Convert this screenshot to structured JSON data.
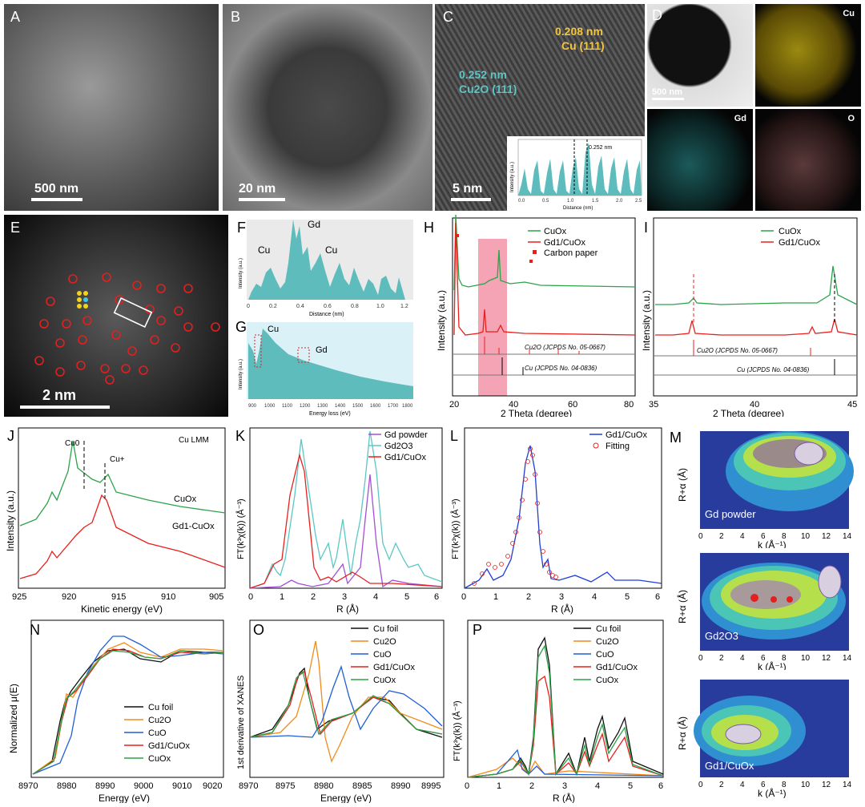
{
  "panels": {
    "A": {
      "label": "A",
      "scale": "500 nm"
    },
    "B": {
      "label": "B",
      "scale": "20 nm"
    },
    "C": {
      "label": "C",
      "scale": "5 nm",
      "ann1": "0.208 nm",
      "ann1b": "Cu (111)",
      "ann2": "0.252 nm",
      "ann2b": "Cu2O (111)",
      "inset_xlabel": "Distance (nm)",
      "inset_ylabel": "Intensity (a.u.)",
      "inset_ann": "0.252 nm",
      "inset_ticks": [
        "0.0",
        "0.5",
        "1.0",
        "1.5",
        "2.0",
        "2.5"
      ]
    },
    "D": {
      "label": "D",
      "scale": "500 nm",
      "maps": [
        "Cu",
        "Gd",
        "O"
      ]
    },
    "E": {
      "label": "E",
      "scale": "2 nm"
    },
    "F": {
      "label": "F",
      "xlabel": "Distance (nm)",
      "ylabel": "Intensity (a.u.)",
      "peaks": [
        "Cu",
        "Gd",
        "Cu"
      ],
      "ticks": [
        "0",
        "0.2",
        "0.4",
        "0.6",
        "0.8",
        "1.0",
        "1.2"
      ]
    },
    "G": {
      "label": "G",
      "xlabel": "Energy loss (eV)",
      "ylabel": "Intensity (a.u.)",
      "peaks": [
        "Cu",
        "Gd"
      ],
      "ticks": [
        "900",
        "1000",
        "1100",
        "1200",
        "1300",
        "1400",
        "1500",
        "1600",
        "1700",
        "1800"
      ]
    },
    "H": {
      "label": "H",
      "xlabel": "2 Theta (degree)",
      "ylabel": "Intensity (a.u.)",
      "legend": [
        "CuOx",
        "Gd1/CuOx",
        "Carbon paper"
      ],
      "refs": [
        "Cu2O (JCPDS No. 05-0667)",
        "Cu (JCPDS No. 04-0836)"
      ],
      "ticks": [
        "20",
        "40",
        "60",
        "80"
      ]
    },
    "I": {
      "label": "I",
      "xlabel": "2 Theta (degree)",
      "ylabel": "Intensity (a.u.)",
      "legend": [
        "CuOx",
        "Gd1/CuOx"
      ],
      "refs": [
        "Cu2O (JCPDS No. 05-0667)",
        "Cu (JCPDS No. 04-0836)"
      ],
      "ticks": [
        "35",
        "40",
        "45"
      ]
    },
    "J": {
      "label": "J",
      "xlabel": "Kinetic energy (eV)",
      "ylabel": "Intensity (a.u.)",
      "title": "Cu LMM",
      "marks": [
        "Cu0",
        "Cu+"
      ],
      "curves": [
        "CuOx",
        "Gd1-CuOx"
      ],
      "ticks": [
        "925",
        "920",
        "915",
        "910",
        "905"
      ]
    },
    "K": {
      "label": "K",
      "xlabel": "R (Å)",
      "ylabel": "FT(k³χ(k)) (Å⁻³)",
      "legend": [
        "Gd powder",
        "Gd2O3",
        "Gd1/CuOx"
      ],
      "ticks": [
        "0",
        "1",
        "2",
        "3",
        "4",
        "5",
        "6"
      ]
    },
    "L": {
      "label": "L",
      "xlabel": "R (Å)",
      "ylabel": "FT(k³χ(k)) (Å⁻³)",
      "legend": [
        "Gd1/CuOx",
        "Fitting"
      ],
      "ticks": [
        "0",
        "1",
        "2",
        "3",
        "4",
        "5",
        "6"
      ]
    },
    "M": {
      "label": "M",
      "xlabel": "k (Å⁻¹)",
      "ylabel": "R+α (Å)",
      "maps": [
        "Gd powder",
        "Gd2O3",
        "Gd1/CuOx"
      ],
      "xticks": [
        "0",
        "2",
        "4",
        "6",
        "8",
        "10",
        "12",
        "14"
      ]
    },
    "N": {
      "label": "N",
      "xlabel": "Energy (eV)",
      "ylabel": "Normalized μ(E)",
      "legend": [
        "Cu foil",
        "Cu2O",
        "CuO",
        "Gd1/CuOx",
        "CuOx"
      ],
      "ticks": [
        "8970",
        "8980",
        "8990",
        "9000",
        "9010",
        "9020"
      ]
    },
    "O": {
      "label": "O",
      "xlabel": "Energy (eV)",
      "ylabel": "1st derivative of XANES",
      "legend": [
        "Cu foil",
        "Cu2O",
        "CuO",
        "Gd1/CuOx",
        "CuOx"
      ],
      "ticks": [
        "8970",
        "8975",
        "8980",
        "8985",
        "8990",
        "8995"
      ]
    },
    "P": {
      "label": "P",
      "xlabel": "R (Å)",
      "ylabel": "FT(k³χ(k)) (Å⁻³)",
      "legend": [
        "Cu foil",
        "Cu2O",
        "CuO",
        "Gd1/CuOx",
        "CuOx"
      ],
      "ticks": [
        "0",
        "1",
        "2",
        "3",
        "4",
        "5",
        "6"
      ]
    }
  },
  "colors": {
    "green": "#2ca24a",
    "red": "#e8201c",
    "black": "#111111",
    "orange": "#f28a1a",
    "blue": "#1f5fd6",
    "teal": "#5cc7c4",
    "purple": "#a44fd6",
    "pink": "#f29aa8",
    "fill": "#5fbcbc"
  }
}
